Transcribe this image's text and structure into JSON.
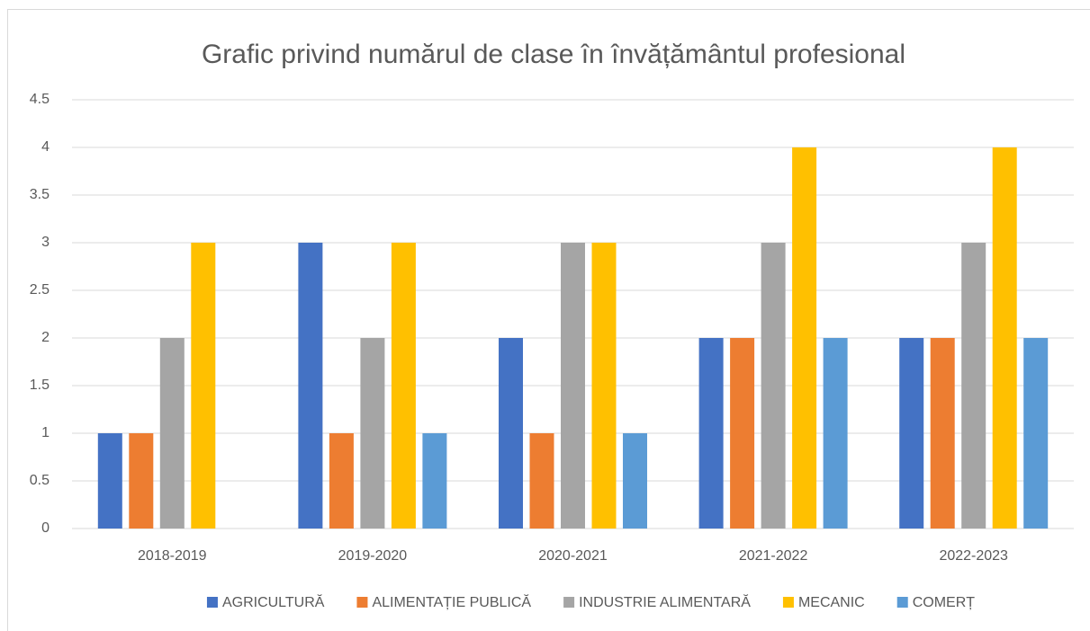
{
  "chart_data": {
    "type": "bar",
    "title": "Grafic privind numărul de clase în învățământul profesional",
    "categories": [
      "2018-2019",
      "2019-2020",
      "2020-2021",
      "2021-2022",
      "2022-2023"
    ],
    "series": [
      {
        "name": "AGRICULTURĂ",
        "color": "#4472c4",
        "values": [
          1,
          3,
          2,
          2,
          2
        ]
      },
      {
        "name": "ALIMENTAȚIE PUBLICĂ",
        "color": "#ed7d31",
        "values": [
          1,
          1,
          1,
          2,
          2
        ]
      },
      {
        "name": "INDUSTRIE ALIMENTARĂ",
        "color": "#a5a5a5",
        "values": [
          2,
          2,
          3,
          3,
          3
        ]
      },
      {
        "name": "MECANIC",
        "color": "#ffc000",
        "values": [
          3,
          3,
          3,
          4,
          4
        ]
      },
      {
        "name": "COMERȚ",
        "color": "#5b9bd5",
        "values": [
          0,
          1,
          1,
          2,
          2
        ]
      }
    ],
    "ylim": [
      0,
      4.5
    ],
    "yticks": [
      0,
      0.5,
      1,
      1.5,
      2,
      2.5,
      3,
      3.5,
      4,
      4.5
    ],
    "grid": true,
    "legend": "bottom"
  }
}
